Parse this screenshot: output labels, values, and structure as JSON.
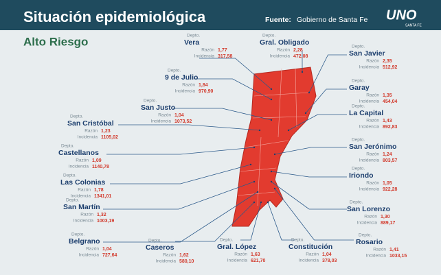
{
  "header": {
    "title": "Situación epidemiológica",
    "source_label": "Fuente:",
    "source": "Gobierno de Santa Fe",
    "logo": "UNO",
    "logo_sub": "SANTA FE"
  },
  "subtitle": "Alto Riesgo",
  "labels": {
    "depto": "Depto.",
    "ratio": "Razón",
    "incidence": "Incidencia"
  },
  "departments": [
    {
      "name": "Vera",
      "ratio": "1,77",
      "incidence": "317,58"
    },
    {
      "name": "Gral. Obligado",
      "ratio": "2,28",
      "incidence": "472,08"
    },
    {
      "name": "San Javier",
      "ratio": "2,35",
      "incidence": "512,92"
    },
    {
      "name": "9 de Julio",
      "ratio": "1,84",
      "incidence": "970,90"
    },
    {
      "name": "Garay",
      "ratio": "1,35",
      "incidence": "454,04"
    },
    {
      "name": "San Justo",
      "ratio": "1,04",
      "incidence": "1073,52"
    },
    {
      "name": "La Capital",
      "ratio": "1,43",
      "incidence": "892,83"
    },
    {
      "name": "San Cristóbal",
      "ratio": "1,23",
      "incidence": "1105,02"
    },
    {
      "name": "San Jerónimo",
      "ratio": "1,24",
      "incidence": "803,57"
    },
    {
      "name": "Castellanos",
      "ratio": "1,09",
      "incidence": "1140,78"
    },
    {
      "name": "Iriondo",
      "ratio": "1,05",
      "incidence": "922,28"
    },
    {
      "name": "Las Colonias",
      "ratio": "1,78",
      "incidence": "1341,01"
    },
    {
      "name": "San Lorenzo",
      "ratio": "1,30",
      "incidence": "889,17"
    },
    {
      "name": "San Martín",
      "ratio": "1,32",
      "incidence": "1003,19"
    },
    {
      "name": "Rosario",
      "ratio": "1,41",
      "incidence": "1033,15"
    },
    {
      "name": "Belgrano",
      "ratio": "1,04",
      "incidence": "727,64"
    },
    {
      "name": "Caseros",
      "ratio": "1,62",
      "incidence": "580,10"
    },
    {
      "name": "Gral. López",
      "ratio": "1,63",
      "incidence": "621,70"
    },
    {
      "name": "Constitución",
      "ratio": "1,04",
      "incidence": "378,03"
    }
  ]
}
